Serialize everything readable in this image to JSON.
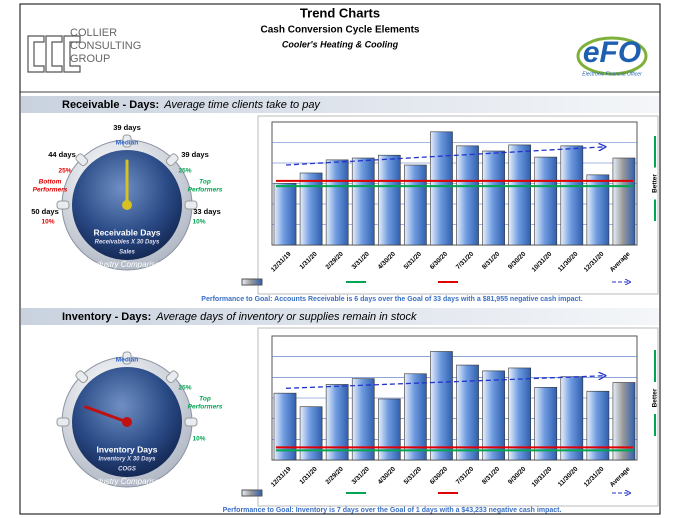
{
  "header": {
    "title": "Trend Charts",
    "subtitle": "Cash Conversion Cycle Elements",
    "company": "Cooler's Heating & Cooling",
    "logo_left": [
      "COLLIER",
      "CONSULTING",
      "GROUP"
    ],
    "logo_right": "eFO",
    "logo_right_caption": "Electronic Financial Officer"
  },
  "sections": [
    {
      "title": "Receivable - Days:",
      "subtitle": "Average time clients take to pay",
      "gauge": {
        "top_value": "39 days",
        "median": "Median",
        "left_value": "44 days",
        "left_pct": "25%",
        "left_group": [
          "Bottom",
          "Performers"
        ],
        "right_value": "39 days",
        "right_pct": "25%",
        "right_group": [
          "Top",
          "Performers"
        ],
        "low_left_value": "50 days",
        "low_left_pct": "10%",
        "low_right_value": "33 days",
        "low_right_pct": "10%",
        "name": "Receivable Days",
        "formula_top": "Receivables X 30 Days",
        "formula_bottom": "Sales",
        "arc_label": "Industry Comparison"
      },
      "chart_data": {
        "type": "bar",
        "categories": [
          "12/31/19",
          "1/31/20",
          "2/29/20",
          "3/31/20",
          "4/30/20",
          "5/31/20",
          "6/30/20",
          "7/31/20",
          "8/31/20",
          "9/30/20",
          "10/31/20",
          "11/30/20",
          "12/31/20",
          "Average"
        ],
        "values": [
          33.6,
          35.8,
          38.6,
          39.0,
          39.6,
          37.5,
          44.6,
          41.6,
          40.5,
          41.8,
          39.2,
          41.6,
          35.4,
          39.0
        ],
        "colors": [
          "#6f9be0",
          "#6f9be0",
          "#6f9be0",
          "#6f9be0",
          "#6f9be0",
          "#6f9be0",
          "#6f9be0",
          "#6f9be0",
          "#6f9be0",
          "#6f9be0",
          "#6f9be0",
          "#6f9be0",
          "#6f9be0",
          "#9a9a9a"
        ],
        "ylim": [
          20.4,
          46.7
        ],
        "grid": true,
        "reference_lines": [
          {
            "value": 33,
            "color": "#00a651"
          },
          {
            "value": 34.1,
            "color": "#e00000"
          }
        ],
        "trend": {
          "values": [
            37.5,
            41.4
          ],
          "color": "#2233cc"
        },
        "side_label": "Better"
      },
      "footer": "Performance to Goal: Accounts Receivable is 6 days over the Goal of 33 days with a $81,955 negative cash impact."
    },
    {
      "title": "Inventory - Days:",
      "subtitle": "Average days of inventory or supplies remain in stock",
      "gauge": {
        "median": "Median",
        "right_pct": "25%",
        "right_group": [
          "Top",
          "Performers"
        ],
        "low_right_pct": "10%",
        "name": "Inventory Days",
        "formula_top": "Inventory X 30 Days",
        "formula_bottom": "COGS",
        "arc_label": "Industry Comparison"
      },
      "chart_data": {
        "type": "bar",
        "categories": [
          "12/31/19",
          "1/31/20",
          "2/29/20",
          "3/31/20",
          "4/30/20",
          "5/31/20",
          "6/30/20",
          "7/31/20",
          "8/31/20",
          "9/30/20",
          "10/31/20",
          "11/30/20",
          "12/31/20",
          "Average"
        ],
        "values": [
          6.9,
          5.5,
          7.8,
          8.4,
          6.3,
          8.9,
          11.2,
          9.8,
          9.2,
          9.5,
          7.5,
          8.6,
          7.1,
          8.0
        ],
        "colors": [
          "#6f9be0",
          "#6f9be0",
          "#6f9be0",
          "#6f9be0",
          "#6f9be0",
          "#6f9be0",
          "#6f9be0",
          "#6f9be0",
          "#6f9be0",
          "#6f9be0",
          "#6f9be0",
          "#6f9be0",
          "#6f9be0",
          "#9a9a9a"
        ],
        "ylim": [
          0,
          12.8
        ],
        "grid": true,
        "reference_lines": [
          {
            "value": 1,
            "color": "#00a651"
          },
          {
            "value": 1.3,
            "color": "#e00000"
          }
        ],
        "trend": {
          "values": [
            7.4,
            8.7
          ],
          "color": "#2233cc"
        },
        "side_label": "Better"
      },
      "footer": "Performance to Goal: Inventory is 7 days over the Goal of 1 days with a $43,233 negative cash impact."
    }
  ]
}
